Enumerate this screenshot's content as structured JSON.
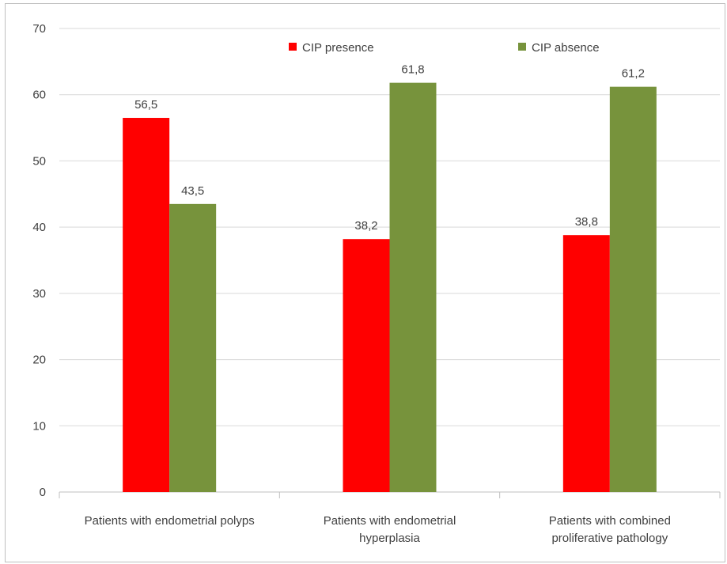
{
  "chart_data": {
    "type": "bar",
    "title": "",
    "xlabel": "",
    "ylabel": "",
    "ylim": [
      0,
      70
    ],
    "yticks": [
      "0",
      "10",
      "20",
      "30",
      "40",
      "50",
      "60",
      "70"
    ],
    "grid": true,
    "legend_position": "top-right",
    "categories": [
      [
        "Patients with endometrial polyps"
      ],
      [
        "Patients with endometrial",
        "hyperplasia"
      ],
      [
        "Patients with combined",
        "proliferative pathology"
      ]
    ],
    "series": [
      {
        "name": "CIP presence",
        "color": "#ff0000",
        "values": [
          56.5,
          38.2,
          38.8
        ],
        "labels": [
          "56,5",
          "38,2",
          "38,8"
        ]
      },
      {
        "name": "CIP absence",
        "color": "#77933c",
        "values": [
          43.5,
          61.8,
          61.2
        ],
        "labels": [
          "43,5",
          "61,8",
          "61,2"
        ]
      }
    ]
  }
}
